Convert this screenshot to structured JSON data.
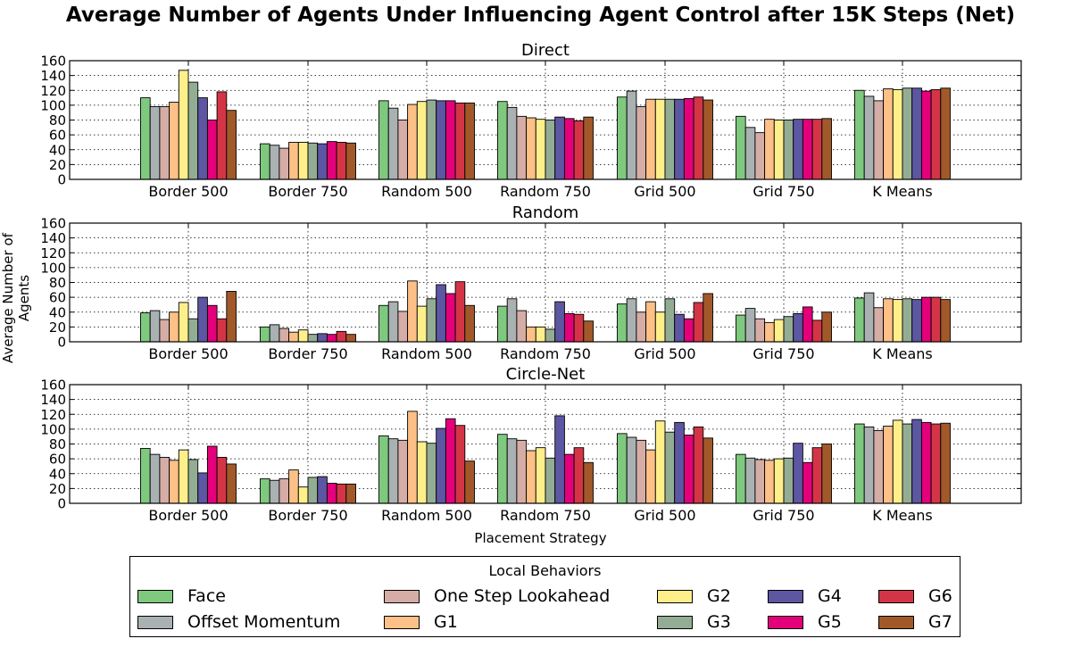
{
  "title": "Average Number of Agents Under Influencing Agent Control after 15K Steps (Net)",
  "xlabel": "Placement Strategy",
  "ylabel": "Average Number of Agents",
  "legend": {
    "title": "Local Behaviors",
    "items": [
      {
        "label": "Face",
        "color": "#7fc97f"
      },
      {
        "label": "Offset Momentum",
        "color": "#a9b1b3"
      },
      {
        "label": "One Step Lookahead",
        "color": "#d5ada6"
      },
      {
        "label": "G1",
        "color": "#fdc086"
      },
      {
        "label": "G2",
        "color": "#ffef8a"
      },
      {
        "label": "G3",
        "color": "#93ad94"
      },
      {
        "label": "G4",
        "color": "#5d56a2"
      },
      {
        "label": "G5",
        "color": "#e4007a"
      },
      {
        "label": "G6",
        "color": "#d43546"
      },
      {
        "label": "G7",
        "color": "#a1592a"
      }
    ]
  },
  "chart_data": [
    {
      "type": "bar",
      "title": "Direct",
      "categories": [
        "Border 500",
        "Border 750",
        "Random 500",
        "Random 750",
        "Grid 500",
        "Grid 750",
        "K Means"
      ],
      "ylim": [
        0,
        160
      ],
      "yticks": [
        0,
        20,
        40,
        60,
        80,
        100,
        120,
        140,
        160
      ],
      "grid": true,
      "series": [
        {
          "name": "Face",
          "values": [
            110,
            48,
            106,
            105,
            111,
            85,
            120
          ]
        },
        {
          "name": "Offset Momentum",
          "values": [
            98,
            46,
            96,
            97,
            119,
            70,
            112
          ]
        },
        {
          "name": "One Step Lookahead",
          "values": [
            98,
            42,
            80,
            85,
            98,
            63,
            106
          ]
        },
        {
          "name": "G1",
          "values": [
            104,
            50,
            101,
            83,
            108,
            81,
            122
          ]
        },
        {
          "name": "G2",
          "values": [
            147,
            50,
            105,
            81,
            108,
            80,
            121
          ]
        },
        {
          "name": "G3",
          "values": [
            131,
            49,
            107,
            80,
            108,
            80,
            123
          ]
        },
        {
          "name": "G4",
          "values": [
            110,
            48,
            106,
            84,
            108,
            81,
            123
          ]
        },
        {
          "name": "G5",
          "values": [
            80,
            51,
            106,
            82,
            109,
            81,
            119
          ]
        },
        {
          "name": "G6",
          "values": [
            118,
            50,
            103,
            79,
            111,
            81,
            121
          ]
        },
        {
          "name": "G7",
          "values": [
            93,
            49,
            103,
            84,
            107,
            82,
            123
          ]
        }
      ]
    },
    {
      "type": "bar",
      "title": "Random",
      "categories": [
        "Border 500",
        "Border 750",
        "Random 500",
        "Random 750",
        "Grid 500",
        "Grid 750",
        "K Means"
      ],
      "ylim": [
        0,
        160
      ],
      "yticks": [
        0,
        20,
        40,
        60,
        80,
        100,
        120,
        140,
        160
      ],
      "grid": true,
      "series": [
        {
          "name": "Face",
          "values": [
            39,
            20,
            49,
            48,
            51,
            36,
            59
          ]
        },
        {
          "name": "Offset Momentum",
          "values": [
            42,
            23,
            54,
            58,
            58,
            45,
            66
          ]
        },
        {
          "name": "One Step Lookahead",
          "values": [
            30,
            18,
            41,
            42,
            40,
            31,
            46
          ]
        },
        {
          "name": "G1",
          "values": [
            40,
            13,
            82,
            20,
            54,
            26,
            58
          ]
        },
        {
          "name": "G2",
          "values": [
            53,
            16,
            48,
            20,
            40,
            30,
            57
          ]
        },
        {
          "name": "G3",
          "values": [
            31,
            10,
            58,
            17,
            58,
            34,
            58
          ]
        },
        {
          "name": "G4",
          "values": [
            60,
            11,
            77,
            54,
            37,
            38,
            57
          ]
        },
        {
          "name": "G5",
          "values": [
            49,
            10,
            65,
            38,
            31,
            47,
            60
          ]
        },
        {
          "name": "G6",
          "values": [
            31,
            14,
            81,
            37,
            53,
            29,
            60
          ]
        },
        {
          "name": "G7",
          "values": [
            68,
            10,
            49,
            28,
            65,
            40,
            57
          ]
        }
      ]
    },
    {
      "type": "bar",
      "title": "Circle-Net",
      "categories": [
        "Border 500",
        "Border 750",
        "Random 500",
        "Random 750",
        "Grid 500",
        "Grid 750",
        "K Means"
      ],
      "ylim": [
        0,
        160
      ],
      "yticks": [
        0,
        20,
        40,
        60,
        80,
        100,
        120,
        140,
        160
      ],
      "grid": true,
      "series": [
        {
          "name": "Face",
          "values": [
            74,
            33,
            91,
            93,
            94,
            66,
            107
          ]
        },
        {
          "name": "Offset Momentum",
          "values": [
            66,
            31,
            87,
            87,
            89,
            61,
            103
          ]
        },
        {
          "name": "One Step Lookahead",
          "values": [
            62,
            33,
            85,
            85,
            85,
            59,
            98
          ]
        },
        {
          "name": "G1",
          "values": [
            58,
            45,
            124,
            71,
            72,
            58,
            104
          ]
        },
        {
          "name": "G2",
          "values": [
            72,
            22,
            83,
            75,
            111,
            60,
            112
          ]
        },
        {
          "name": "G3",
          "values": [
            59,
            35,
            81,
            61,
            96,
            61,
            107
          ]
        },
        {
          "name": "G4",
          "values": [
            41,
            36,
            101,
            118,
            109,
            81,
            113
          ]
        },
        {
          "name": "G5",
          "values": [
            77,
            27,
            114,
            66,
            92,
            55,
            109
          ]
        },
        {
          "name": "G6",
          "values": [
            62,
            26,
            105,
            75,
            103,
            75,
            107
          ]
        },
        {
          "name": "G7",
          "values": [
            53,
            26,
            57,
            55,
            88,
            80,
            108
          ]
        }
      ]
    }
  ]
}
